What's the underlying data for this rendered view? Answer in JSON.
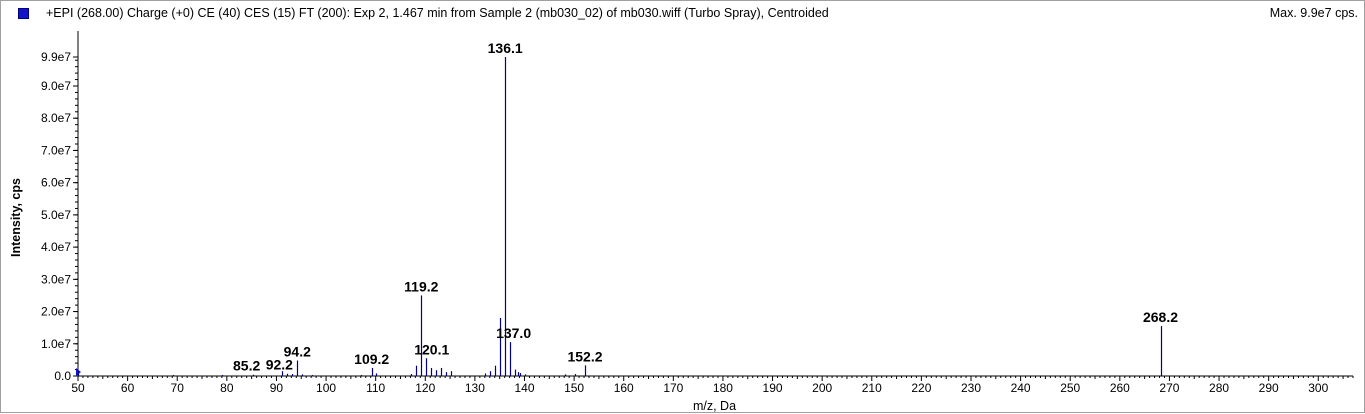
{
  "header": {
    "title": "+EPI (268.00) Charge (+0) CE (40) CES (15) FT (200): Exp 2, 1.467 min from Sample 2 (mb030_02) of mb030.wiff (Turbo Spray), Centroided",
    "max_text": "Max. 9.9e7 cps."
  },
  "colors": {
    "series": "#00008b",
    "swatch": "#1414c8",
    "axis": "#000000"
  },
  "chart_data": {
    "type": "bar",
    "title": "+EPI (268.00) Charge (+0) CE (40) CES (15) FT (200): Exp 2, 1.467 min from Sample 2 (mb030_02) of mb030.wiff (Turbo Spray), Centroided",
    "xlabel": "m/z, Da",
    "ylabel": "Intensity, cps",
    "xlim": [
      50,
      307
    ],
    "ylim": [
      0,
      99000000
    ],
    "xticks": [
      50,
      60,
      70,
      80,
      90,
      100,
      110,
      120,
      130,
      140,
      150,
      160,
      170,
      180,
      190,
      200,
      210,
      220,
      230,
      240,
      250,
      260,
      270,
      280,
      290,
      300
    ],
    "xtick_labels": [
      "50",
      "60",
      "70",
      "80",
      "90",
      "100",
      "110",
      "120",
      "130",
      "140",
      "150",
      "160",
      "170",
      "180",
      "190",
      "200",
      "210",
      "220",
      "230",
      "240",
      "250",
      "260",
      "270",
      "280",
      "290",
      "300"
    ],
    "yticks": [
      0,
      10000000,
      20000000,
      30000000,
      40000000,
      50000000,
      60000000,
      70000000,
      80000000,
      90000000,
      99000000
    ],
    "ytick_labels": [
      "0.0",
      "1.0e7",
      "2.0e7",
      "3.0e7",
      "4.0e7",
      "5.0e7",
      "6.0e7",
      "7.0e7",
      "8.0e7",
      "9.0e7",
      "9.9e7"
    ],
    "series": [
      {
        "peaks": [
          {
            "x": 50.1,
            "y": 1500000
          },
          {
            "x": 69.1,
            "y": 300000
          },
          {
            "x": 79.1,
            "y": 300000
          },
          {
            "x": 85.2,
            "y": 400000,
            "label": "85.2"
          },
          {
            "x": 91.1,
            "y": 1500000
          },
          {
            "x": 92.2,
            "y": 700000,
            "label": "92.2"
          },
          {
            "x": 93.1,
            "y": 600000
          },
          {
            "x": 94.2,
            "y": 4800000,
            "label": "94.2"
          },
          {
            "x": 95.1,
            "y": 500000
          },
          {
            "x": 97.1,
            "y": 300000
          },
          {
            "x": 107.1,
            "y": 300000
          },
          {
            "x": 109.2,
            "y": 2500000,
            "label": "109.2"
          },
          {
            "x": 110.1,
            "y": 800000
          },
          {
            "x": 117.1,
            "y": 600000
          },
          {
            "x": 118.1,
            "y": 3200000
          },
          {
            "x": 119.2,
            "y": 25000000,
            "label": "119.2"
          },
          {
            "x": 120.1,
            "y": 5500000,
            "label": "120.1"
          },
          {
            "x": 121.1,
            "y": 2500000
          },
          {
            "x": 122.1,
            "y": 1800000
          },
          {
            "x": 123.1,
            "y": 2500000
          },
          {
            "x": 124.1,
            "y": 1200000
          },
          {
            "x": 125.1,
            "y": 1500000
          },
          {
            "x": 132.1,
            "y": 800000
          },
          {
            "x": 133.1,
            "y": 1500000
          },
          {
            "x": 134.1,
            "y": 3200000
          },
          {
            "x": 135.1,
            "y": 18000000
          },
          {
            "x": 136.1,
            "y": 99000000,
            "label": "136.1"
          },
          {
            "x": 137.0,
            "y": 10500000,
            "label": "137.0"
          },
          {
            "x": 138.1,
            "y": 2000000
          },
          {
            "x": 138.6,
            "y": 1200000
          },
          {
            "x": 139.1,
            "y": 900000
          },
          {
            "x": 140.1,
            "y": 500000
          },
          {
            "x": 148.1,
            "y": 500000
          },
          {
            "x": 150.1,
            "y": 600000
          },
          {
            "x": 152.2,
            "y": 3300000,
            "label": "152.2"
          },
          {
            "x": 268.2,
            "y": 15500000,
            "label": "268.2"
          }
        ]
      }
    ]
  }
}
